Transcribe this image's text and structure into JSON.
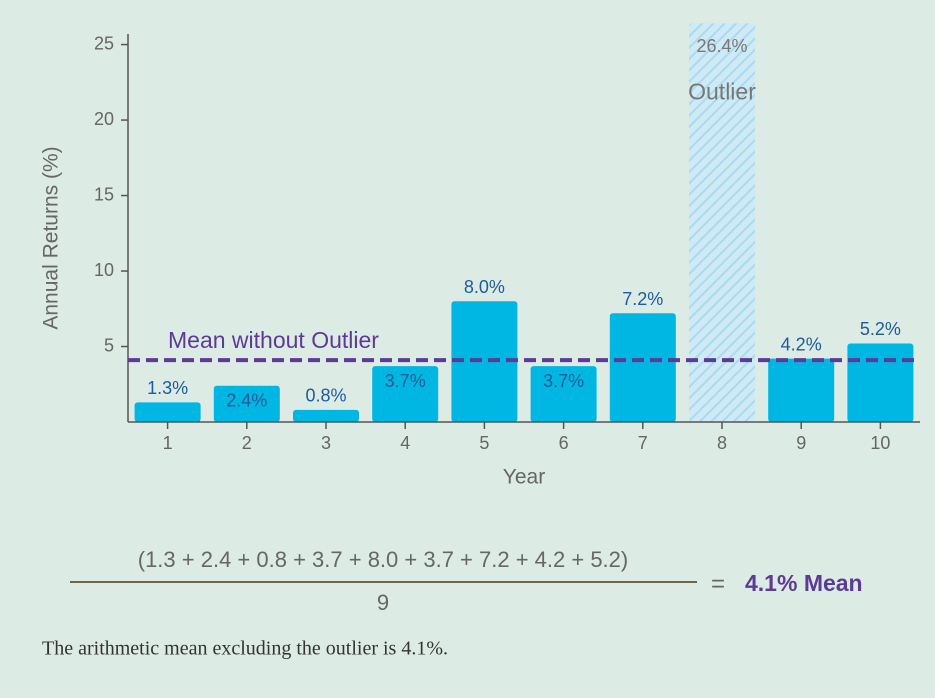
{
  "chart_data": {
    "type": "bar",
    "xlabel": "Year",
    "ylabel": "Annual Returns (%)",
    "categories": [
      "1",
      "2",
      "3",
      "4",
      "5",
      "6",
      "7",
      "8",
      "9",
      "10"
    ],
    "values": [
      1.3,
      2.4,
      0.8,
      3.7,
      8.0,
      3.7,
      7.2,
      26.4,
      4.2,
      5.2
    ],
    "value_labels": [
      "1.3%",
      "2.4%",
      "0.8%",
      "3.7%",
      "8.0%",
      "3.7%",
      "7.2%",
      "26.4%",
      "4.2%",
      "5.2%"
    ],
    "color": "#00b6e3",
    "outlier_color": "#b9e2f3",
    "label_color": "#1c5c9c",
    "ylim": [
      0,
      25.7
    ],
    "yticks": [
      5,
      10,
      15,
      20,
      25
    ],
    "grid": false,
    "outlier": {
      "index": 7,
      "label": "Outlier"
    },
    "mean_line": {
      "value": 4.1,
      "label": "Mean without Outlier",
      "color": "#5b3b97"
    }
  },
  "formula": {
    "numerator": "(1.3 + 2.4 + 0.8 + 3.7 + 8.0 + 3.7 + 7.2 + 4.2 + 5.2)",
    "denominator": "9",
    "equals": "=",
    "result": "4.1% Mean"
  },
  "caption": "The arithmetic mean excluding the outlier is 4.1%."
}
